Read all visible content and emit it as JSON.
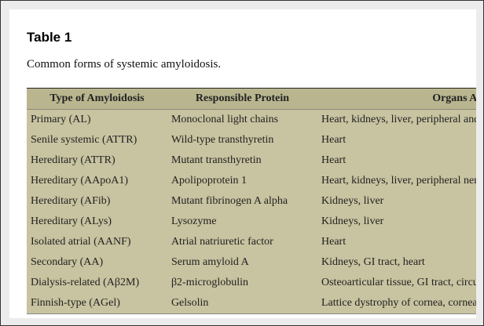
{
  "title": "Table 1",
  "caption": "Common forms of systemic amyloidosis.",
  "table": {
    "headers": [
      "Type of Amyloidosis",
      "Responsible Protein",
      "Organs Affected"
    ],
    "rows": [
      [
        "Primary (AL)",
        "Monoclonal light chains",
        "Heart, kidneys, liver, peripheral and autonomic nervous system"
      ],
      [
        "Senile systemic (ATTR)",
        "Wild-type transthyretin",
        "Heart"
      ],
      [
        "Hereditary (ATTR)",
        "Mutant transthyretin",
        "Heart"
      ],
      [
        "Hereditary (AApoA1)",
        "Apolipoprotein 1",
        "Heart, kidneys, liver, peripheral nervous system"
      ],
      [
        "Hereditary (AFib)",
        "Mutant fibrinogen A alpha",
        "Kidneys, liver"
      ],
      [
        "Hereditary (ALys)",
        "Lysozyme",
        "Kidneys, liver"
      ],
      [
        "Isolated atrial (AANF)",
        "Atrial natriuretic factor",
        "Heart"
      ],
      [
        "Secondary (AA)",
        "Serum amyloid A",
        "Kidneys, GI tract, heart"
      ],
      [
        "Dialysis-related (Aβ2M)",
        "β2-microglobulin",
        "Osteoarticular tissue, GI tract, circulatory"
      ],
      [
        "Finnish-type (AGel)",
        "Gelsolin",
        "Lattice dystrophy of cornea, corneal neuropathy"
      ]
    ]
  },
  "colors": {
    "header_bg": "#b9b68f",
    "body_bg": "#c8c3a0"
  }
}
